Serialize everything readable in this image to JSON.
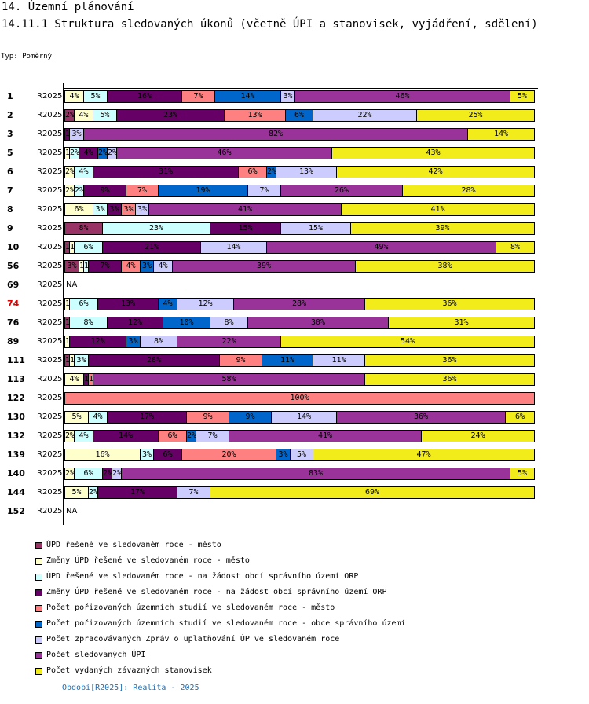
{
  "header": {
    "title": "14. Územní plánování",
    "subtitle": "14.11.1 Struktura sledovaných úkonů (včetně ÚPI a stanovisek, vyjádření, sdělení)",
    "type_label": "Typ: Poměrný"
  },
  "chart_data": {
    "type": "bar",
    "orientation": "horizontal",
    "stacked": "percent",
    "title": "14.11.1 Struktura sledovaných úkonů (včetně ÚPI a stanovisek, vyjádření, sdělení)",
    "xlabel": "",
    "ylabel": "",
    "xlim": [
      0,
      100
    ],
    "legend_position": "bottom",
    "series": [
      {
        "name": "ÚPD řešené ve sledovaném roce - město",
        "color": "#993366"
      },
      {
        "name": "Změny ÚPD řešené ve sledovaném roce - město",
        "color": "#ffffcc"
      },
      {
        "name": "ÚPD řešené ve sledovaném roce - na žádost obcí správního území ORP",
        "color": "#ccffff"
      },
      {
        "name": "Změny ÚPD řešené ve sledovaném roce - na žádost obcí správního území ORP",
        "color": "#660066"
      },
      {
        "name": "Počet pořizovaných územních studií ve sledovaném roce - město",
        "color": "#ff8080"
      },
      {
        "name": "Počet pořizovaných územních studií ve sledovaném roce - obce správního území",
        "color": "#0066cc"
      },
      {
        "name": "Počet zpracovávaných Zpráv o uplatňování ÚP ve sledovaném roce",
        "color": "#ccccff"
      },
      {
        "name": "Počet sledovaných ÚPI",
        "color": "#993399"
      },
      {
        "name": "Počet vydaných závazných stanovisek",
        "color": "#f2ec1b"
      }
    ],
    "rows": [
      {
        "label": "1",
        "period": "R2025",
        "highlight": false,
        "values": [
          0,
          4,
          5,
          16,
          7,
          14,
          3,
          46,
          5
        ]
      },
      {
        "label": "2",
        "period": "R2025",
        "highlight": false,
        "values": [
          2,
          4,
          5,
          23,
          13,
          6,
          22,
          0,
          25
        ]
      },
      {
        "label": "3",
        "period": "R2025",
        "highlight": false,
        "values": [
          0,
          0,
          0,
          1,
          0,
          0,
          3,
          82,
          14
        ]
      },
      {
        "label": "5",
        "period": "R2025",
        "highlight": false,
        "values": [
          0,
          1,
          2,
          4,
          0,
          2,
          2,
          46,
          43
        ]
      },
      {
        "label": "6",
        "period": "R2025",
        "highlight": false,
        "values": [
          0,
          2,
          4,
          31,
          6,
          2,
          13,
          0,
          42
        ]
      },
      {
        "label": "7",
        "period": "R2025",
        "highlight": false,
        "values": [
          0,
          2,
          2,
          9,
          7,
          19,
          7,
          26,
          28
        ]
      },
      {
        "label": "8",
        "period": "R2025",
        "highlight": false,
        "values": [
          0,
          6,
          3,
          3,
          3,
          0,
          3,
          41,
          41
        ]
      },
      {
        "label": "9",
        "period": "R2025",
        "highlight": false,
        "values": [
          8,
          0,
          23,
          15,
          0,
          0,
          15,
          0,
          39
        ]
      },
      {
        "label": "10",
        "period": "R2025",
        "highlight": false,
        "values": [
          1,
          1,
          6,
          21,
          0,
          0,
          14,
          49,
          8
        ]
      },
      {
        "label": "56",
        "period": "R2025",
        "highlight": false,
        "values": [
          3,
          1,
          1,
          7,
          4,
          3,
          4,
          39,
          38
        ]
      },
      {
        "label": "69",
        "period": "R2025",
        "highlight": false,
        "values": null,
        "na": "NA"
      },
      {
        "label": "74",
        "period": "R2025",
        "highlight": true,
        "values": [
          0,
          1,
          6,
          13,
          0,
          4,
          12,
          28,
          36
        ]
      },
      {
        "label": "76",
        "period": "R2025",
        "highlight": false,
        "values": [
          1,
          0,
          8,
          12,
          0,
          10,
          8,
          30,
          31
        ]
      },
      {
        "label": "89",
        "period": "R2025",
        "highlight": false,
        "values": [
          0,
          1,
          0,
          12,
          0,
          3,
          8,
          22,
          54
        ]
      },
      {
        "label": "111",
        "period": "R2025",
        "highlight": false,
        "values": [
          1,
          1,
          3,
          28,
          9,
          11,
          11,
          0,
          36
        ]
      },
      {
        "label": "113",
        "period": "R2025",
        "highlight": false,
        "values": [
          0,
          4,
          0,
          1,
          1,
          0,
          0,
          58,
          36
        ]
      },
      {
        "label": "122",
        "period": "R2025",
        "highlight": false,
        "values": [
          0,
          0,
          0,
          0,
          100,
          0,
          0,
          0,
          0
        ]
      },
      {
        "label": "130",
        "period": "R2025",
        "highlight": false,
        "values": [
          0,
          5,
          4,
          17,
          9,
          9,
          14,
          36,
          6
        ]
      },
      {
        "label": "132",
        "period": "R2025",
        "highlight": false,
        "values": [
          0,
          2,
          4,
          14,
          6,
          2,
          7,
          41,
          24
        ]
      },
      {
        "label": "139",
        "period": "R2025",
        "highlight": false,
        "values": [
          0,
          16,
          3,
          6,
          20,
          3,
          5,
          0,
          47
        ]
      },
      {
        "label": "140",
        "period": "R2025",
        "highlight": false,
        "values": [
          0,
          2,
          6,
          2,
          0,
          0,
          2,
          83,
          5
        ]
      },
      {
        "label": "144",
        "period": "R2025",
        "highlight": false,
        "values": [
          0,
          5,
          2,
          17,
          0,
          0,
          7,
          0,
          69
        ]
      },
      {
        "label": "152",
        "period": "R2025",
        "highlight": false,
        "values": null,
        "na": "NA"
      }
    ]
  },
  "legend": {
    "items": [
      "ÚPD řešené ve sledovaném roce - město",
      "Změny ÚPD řešené ve sledovaném roce - město",
      "ÚPD řešené ve sledovaném roce - na žádost obcí správního území ORP",
      "Změny ÚPD řešené ve sledovaném roce - na žádost obcí správního území ORP",
      "Počet pořizovaných územních studií ve sledovaném roce - město",
      "Počet pořizovaných územních studií ve sledovaném roce - obce správního území",
      "Počet zpracovávaných Zpráv o uplatňování ÚP ve sledovaném roce",
      "Počet sledovaných ÚPI",
      "Počet vydaných závazných stanovisek"
    ]
  },
  "footer": {
    "period_note": "Období[R2025]: Realita - 2025"
  },
  "colors": {
    "highlight_label": "#e00000",
    "footer_text": "#1f6fb5"
  }
}
